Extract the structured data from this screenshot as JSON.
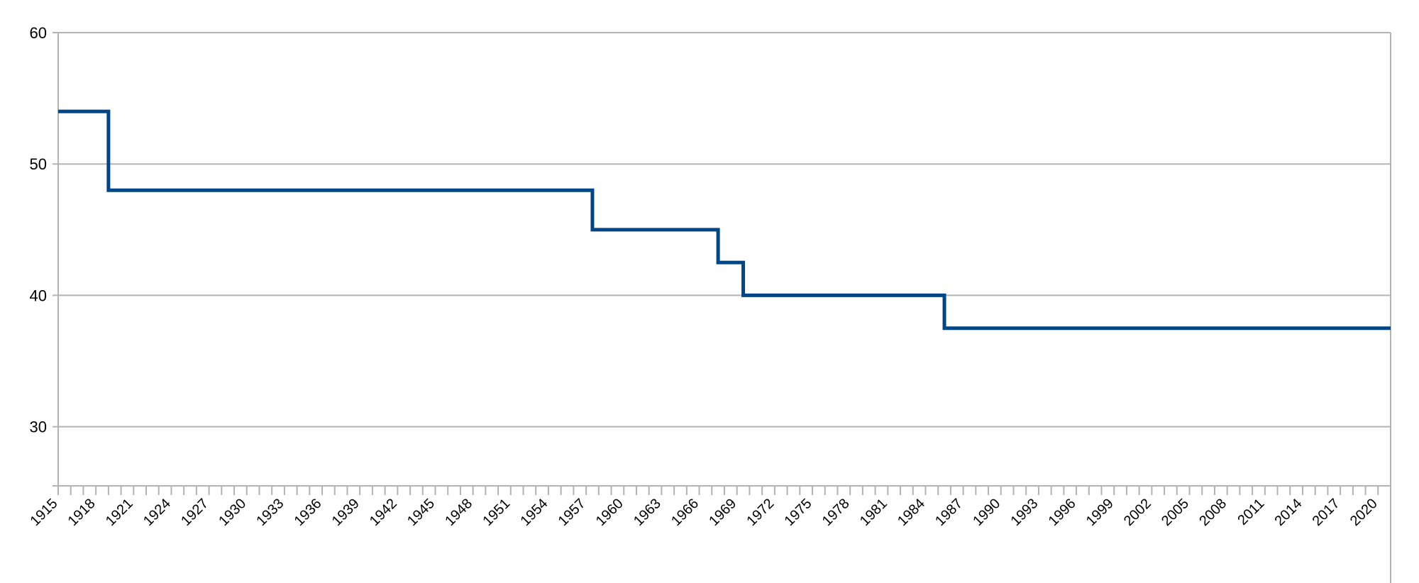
{
  "chart_data": {
    "type": "line",
    "title": "",
    "xlabel": "",
    "ylabel": "",
    "xlim": [
      1915,
      2021
    ],
    "ylim": [
      25.5,
      60
    ],
    "y_ticks": [
      30,
      40,
      50,
      60
    ],
    "x_tick_labels": [
      "1915",
      "1918",
      "1921",
      "1924",
      "1927",
      "1930",
      "1933",
      "1936",
      "1939",
      "1942",
      "1945",
      "1948",
      "1951",
      "1954",
      "1957",
      "1960",
      "1963",
      "1966",
      "1969",
      "1972",
      "1975",
      "1978",
      "1981",
      "1984",
      "1987",
      "1990",
      "1993",
      "1996",
      "1999",
      "2002",
      "2005",
      "2008",
      "2011",
      "2014",
      "2017",
      "2020"
    ],
    "grid": true,
    "legend": "none",
    "line_color": "#004586",
    "series": [
      {
        "step": true,
        "points": [
          {
            "x": 1915,
            "y": 54
          },
          {
            "x": 1919,
            "y": 48
          },
          {
            "x": 1957.5,
            "y": 45
          },
          {
            "x": 1967.5,
            "y": 42.5
          },
          {
            "x": 1969.5,
            "y": 40
          },
          {
            "x": 1985.5,
            "y": 37.5
          },
          {
            "x": 2021,
            "y": 37.5
          }
        ]
      }
    ]
  }
}
